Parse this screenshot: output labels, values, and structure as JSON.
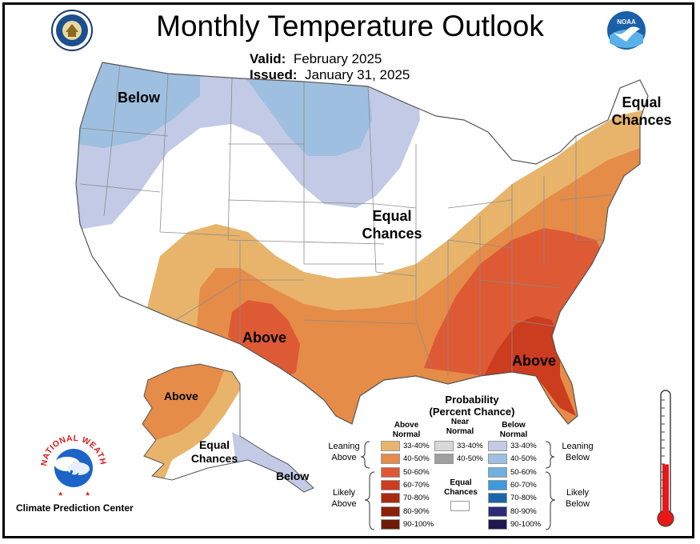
{
  "header": {
    "title": "Monthly Temperature Outlook",
    "valid_label": "Valid:",
    "valid_value": "February 2025",
    "issued_label": "Issued:",
    "issued_value": "January 31, 2025"
  },
  "map_labels": {
    "below_nw": "Below",
    "equal_ne": [
      "Equal",
      "Chances"
    ],
    "equal_central": [
      "Equal",
      "Chances"
    ],
    "above_tx": "Above",
    "above_se": "Above",
    "above_ak": "Above",
    "equal_ak": [
      "Equal",
      "Chances"
    ],
    "below_ak": "Below"
  },
  "legend": {
    "title": [
      "Probability",
      "(Percent Chance)"
    ],
    "above_head": [
      "Above",
      "Normal"
    ],
    "near_head": [
      "Near",
      "Normal"
    ],
    "below_head": [
      "Below",
      "Normal"
    ],
    "above_items": [
      {
        "label": "33-40%",
        "color": "#e8b46c"
      },
      {
        "label": "40-50%",
        "color": "#e58c48"
      },
      {
        "label": "50-60%",
        "color": "#dd5a34"
      },
      {
        "label": "60-70%",
        "color": "#cc3c1e"
      },
      {
        "label": "70-80%",
        "color": "#a92a10"
      },
      {
        "label": "80-90%",
        "color": "#8a200a"
      },
      {
        "label": "90-100%",
        "color": "#6e1a06"
      }
    ],
    "near_items": [
      {
        "label": "33-40%",
        "color": "#d8d8d8"
      },
      {
        "label": "40-50%",
        "color": "#a0a0a0"
      }
    ],
    "equal_label": [
      "Equal",
      "Chances"
    ],
    "below_items": [
      {
        "label": "33-40%",
        "color": "#c2cae6"
      },
      {
        "label": "40-50%",
        "color": "#9ebfe0"
      },
      {
        "label": "50-60%",
        "color": "#6fb0e0"
      },
      {
        "label": "60-70%",
        "color": "#3e9adc"
      },
      {
        "label": "70-80%",
        "color": "#1c64a8"
      },
      {
        "label": "80-90%",
        "color": "#2d2a7a"
      },
      {
        "label": "90-100%",
        "color": "#1e1850"
      }
    ],
    "leaning_above": [
      "Leaning",
      "Above"
    ],
    "likely_above": [
      "Likely",
      "Above"
    ],
    "leaning_below": [
      "Leaning",
      "Below"
    ],
    "likely_below": [
      "Likely",
      "Below"
    ]
  },
  "footer": {
    "nws_ring_text": "NATIONAL WEATHER SERVICE",
    "cpc_label": "Climate Prediction Center"
  },
  "logos": {
    "commerce": "seal-of-department-of-commerce",
    "noaa": "NOAA",
    "thermometer_level": 0.42
  }
}
